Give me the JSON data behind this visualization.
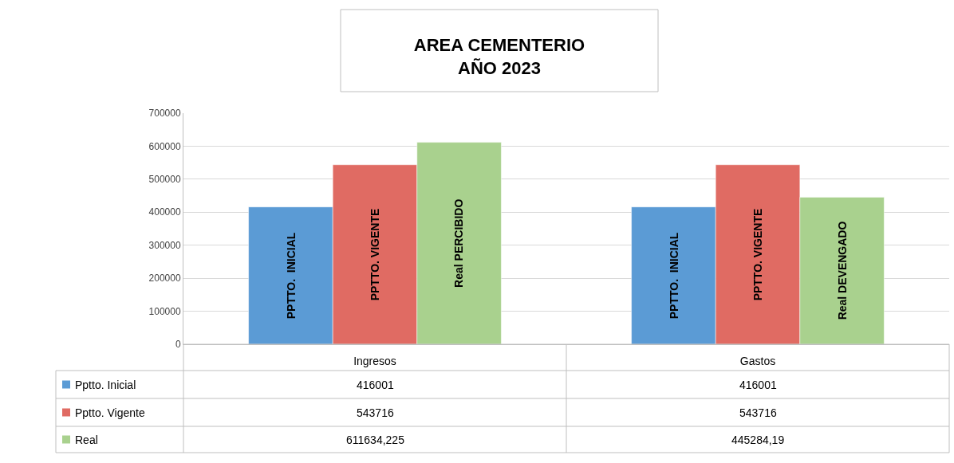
{
  "chart_data": {
    "type": "bar",
    "title": "AREA CEMENTERIO\nAÑO 2023",
    "categories": [
      "Ingresos",
      "Gastos"
    ],
    "series": [
      {
        "name": "Pptto. Inicial",
        "color": "#5b9bd5",
        "values": [
          416001,
          416001
        ],
        "value_labels": [
          "416001",
          "416001"
        ]
      },
      {
        "name": "Pptto. Vigente",
        "color": "#e06b63",
        "values": [
          543716,
          543716
        ],
        "value_labels": [
          "543716",
          "543716"
        ]
      },
      {
        "name": "Real",
        "color": "#a9d18e",
        "values": [
          611634.225,
          445284.19
        ],
        "value_labels": [
          "611634,225",
          "445284,19"
        ]
      }
    ],
    "annotations": [
      "PPTTO.  INICIAL",
      "PPTTO. VIGENTE",
      "Real PERCIBIDO",
      "PPTTO.  INICIAL",
      "PPTTO. VIGENTE",
      "Real DEVENGADO"
    ],
    "ylim": [
      0,
      700000
    ],
    "yticks": [
      0,
      100000,
      200000,
      300000,
      400000,
      500000,
      600000,
      700000
    ],
    "grid": "y",
    "legend": "bottom left"
  }
}
